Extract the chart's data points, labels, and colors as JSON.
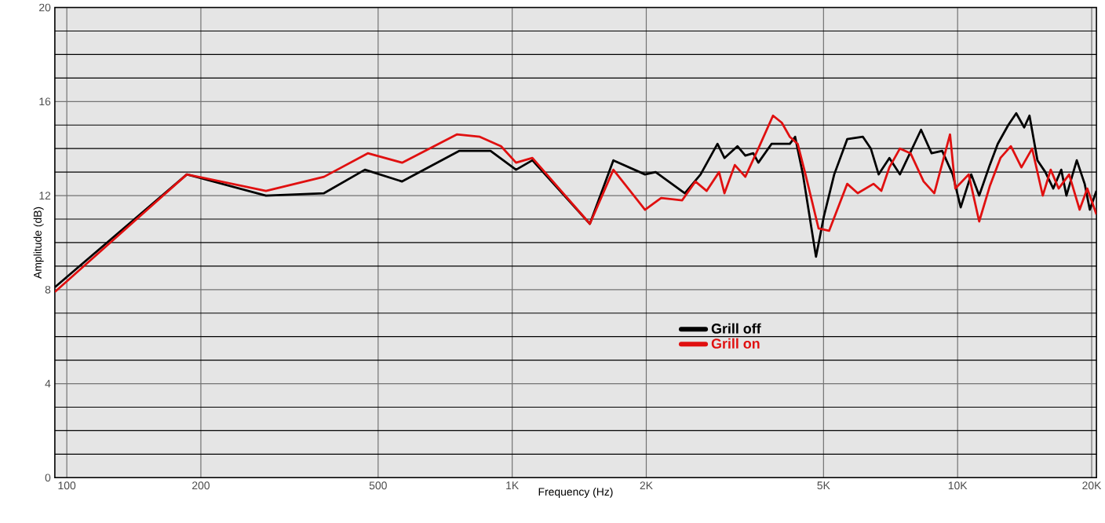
{
  "chart_data": {
    "type": "line",
    "xlabel": "Frequency (Hz)",
    "ylabel": "Amplitude (dB)",
    "log": "x",
    "xlim": [
      94,
      20500
    ],
    "ylim": [
      0,
      20
    ],
    "xticks": [
      100,
      200,
      500,
      {
        "value": 1000,
        "label": "1K"
      },
      {
        "value": 2000,
        "label": "2K"
      },
      {
        "value": 5000,
        "label": "5K"
      },
      {
        "value": 10000,
        "label": "10K"
      },
      {
        "value": 20000,
        "label": "20K"
      }
    ],
    "yticks": [
      0,
      4,
      8,
      12,
      16,
      20
    ],
    "grid": true,
    "legend": "bottom",
    "marker": "none",
    "line_style": "solid",
    "series": [
      {
        "name": "Grill off",
        "color": "#000000",
        "x": [
          94,
          186,
          280,
          378,
          467,
          566,
          760,
          894,
          1020,
          1110,
          1494,
          1687,
          1987,
          2099,
          2441,
          2648,
          2890,
          2996,
          3204,
          3337,
          3477,
          3570,
          3822,
          4201,
          4317,
          4495,
          4809,
          5007,
          5284,
          5652,
          6129,
          6385,
          6650,
          7028,
          7422,
          8278,
          8741,
          9234,
          9750,
          10160,
          10729,
          11180,
          11810,
          12306,
          12995,
          13540,
          14110,
          14500,
          15110,
          15740,
          16400,
          17090,
          17550,
          18520,
          19290,
          19810,
          20500
        ],
        "values": [
          8.1,
          12.9,
          12.0,
          12.1,
          13.1,
          12.6,
          13.9,
          13.9,
          13.1,
          13.5,
          10.8,
          13.5,
          12.9,
          13.0,
          12.1,
          12.9,
          14.2,
          13.6,
          14.1,
          13.7,
          13.8,
          13.4,
          14.2,
          14.2,
          14.5,
          12.9,
          9.4,
          11.1,
          12.9,
          14.4,
          14.5,
          14.0,
          12.9,
          13.6,
          12.9,
          14.8,
          13.8,
          13.9,
          12.9,
          11.5,
          12.9,
          12.0,
          13.3,
          14.2,
          15.0,
          15.5,
          14.9,
          15.4,
          13.5,
          13.0,
          12.3,
          13.1,
          12.0,
          13.5,
          12.5,
          11.4,
          12.2
        ]
      },
      {
        "name": "Grill on",
        "color": "#e01010",
        "x": [
          94,
          186,
          280,
          378,
          474,
          566,
          751,
          846,
          944,
          1020,
          1110,
          1494,
          1687,
          1987,
          2160,
          2408,
          2578,
          2733,
          2914,
          2996,
          3161,
          3337,
          3570,
          3851,
          4030,
          4201,
          4374,
          4555,
          4874,
          5146,
          5652,
          5967,
          6474,
          6741,
          7028,
          7422,
          7841,
          8390,
          8864,
          9616,
          9885,
          10590,
          11180,
          11810,
          12480,
          13170,
          13910,
          14700,
          15530,
          16180,
          16860,
          17800,
          18790,
          19550,
          20500
        ],
        "values": [
          7.9,
          12.9,
          12.2,
          12.8,
          13.8,
          13.4,
          14.6,
          14.5,
          14.1,
          13.4,
          13.6,
          10.8,
          13.1,
          11.4,
          11.9,
          11.8,
          12.6,
          12.2,
          13.0,
          12.1,
          13.3,
          12.8,
          14.0,
          15.4,
          15.1,
          14.5,
          14.2,
          12.9,
          10.6,
          10.5,
          12.5,
          12.1,
          12.5,
          12.2,
          13.2,
          14.0,
          13.8,
          12.6,
          12.1,
          14.6,
          12.3,
          12.9,
          10.9,
          12.4,
          13.6,
          14.1,
          13.2,
          14.0,
          12.0,
          13.1,
          12.3,
          12.9,
          11.4,
          12.3,
          11.2
        ]
      }
    ]
  }
}
